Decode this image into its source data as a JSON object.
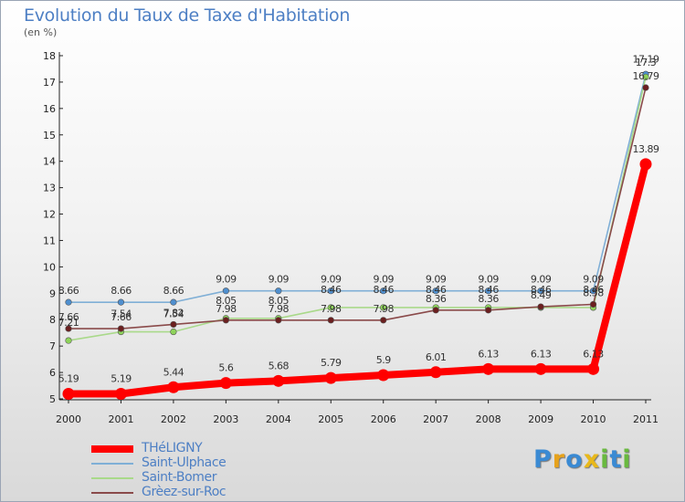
{
  "header": {
    "title": "Evolution du Taux de Taxe d'Habitation",
    "subtitle": "(en %)"
  },
  "logo": {
    "letters": [
      "P",
      "r",
      "o",
      "x",
      "i",
      "t",
      "i"
    ],
    "colors": [
      "#3a8ad3",
      "#e6a21c",
      "#3a8ad3",
      "#e8b81a",
      "#69b93f",
      "#3a8ad3",
      "#69b93f"
    ]
  },
  "chart_data": {
    "type": "line",
    "x": [
      "2000",
      "2001",
      "2002",
      "2003",
      "2004",
      "2005",
      "2006",
      "2007",
      "2008",
      "2009",
      "2010",
      "2011"
    ],
    "ylim": [
      5,
      18
    ],
    "yticks": [
      5,
      6,
      7,
      8,
      9,
      10,
      11,
      12,
      13,
      14,
      15,
      16,
      17,
      18
    ],
    "grid": false,
    "legend_position": "bottom-left",
    "series": [
      {
        "name": "Saint-Ulphace",
        "color": "#7fafd6",
        "marker_color": "#4f8fcf",
        "values": [
          8.66,
          8.66,
          8.66,
          9.09,
          9.09,
          9.09,
          9.09,
          9.09,
          9.09,
          9.09,
          9.09,
          17.3
        ],
        "labels": [
          "8.66",
          "8.66",
          "8.66",
          "9.09",
          "9.09",
          "9.09",
          "9.09",
          "9.09",
          "9.09",
          "9.09",
          "9.09",
          "17.3"
        ]
      },
      {
        "name": "Saint-Bomer",
        "color": "#a9d98a",
        "marker_color": "#8ed35a",
        "values": [
          7.21,
          7.54,
          7.54,
          8.05,
          8.05,
          8.46,
          8.46,
          8.46,
          8.46,
          8.46,
          8.46,
          17.19
        ],
        "labels": [
          "7.21",
          "7.54",
          "7.54",
          "8.05",
          "8.05",
          "8.46",
          "8.46",
          "8.46",
          "8.46",
          "8.46",
          "8.46",
          "17.19"
        ]
      },
      {
        "name": "Grèez-sur-Roc",
        "color": "#8a4a4a",
        "marker_color": "#6b1f1f",
        "values": [
          7.66,
          7.66,
          7.82,
          7.98,
          7.98,
          7.98,
          7.98,
          8.36,
          8.36,
          8.49,
          8.58,
          16.79
        ],
        "labels": [
          "7.66",
          "7.66",
          "7.82",
          "7.98",
          "7.98",
          "7.98",
          "7.98",
          "8.36",
          "8.36",
          "8.49",
          "8.58",
          "16.79"
        ]
      },
      {
        "name": "THéLIGNY",
        "color": "#ff0000",
        "marker_color": "#ff0000",
        "values": [
          5.19,
          5.19,
          5.44,
          5.6,
          5.68,
          5.79,
          5.9,
          6.01,
          6.13,
          6.13,
          6.13,
          13.89
        ],
        "labels": [
          "5.19",
          "5.19",
          "5.44",
          "5.6",
          "5.68",
          "5.79",
          "5.9",
          "6.01",
          "6.13",
          "6.13",
          "6.13",
          "13.89"
        ]
      }
    ],
    "legend_order": [
      "THéLIGNY",
      "Saint-Ulphace",
      "Saint-Bomer",
      "Grèez-sur-Roc"
    ]
  }
}
